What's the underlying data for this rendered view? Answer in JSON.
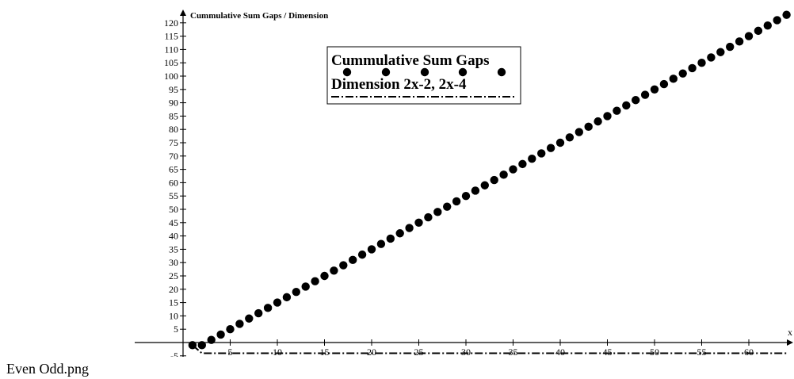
{
  "caption": "Even Odd.png",
  "chart_data": {
    "type": "scatter",
    "title": "",
    "ylabel": "Cummulative Sum Gaps / Dimension",
    "xlabel": "x",
    "xlim": [
      0,
      64
    ],
    "ylim": [
      -8,
      124
    ],
    "x_ticks": [
      5,
      10,
      15,
      20,
      25,
      30,
      35,
      40,
      45,
      50,
      55,
      60
    ],
    "y_ticks": [
      -5,
      5,
      10,
      15,
      20,
      25,
      30,
      35,
      40,
      45,
      50,
      55,
      60,
      65,
      70,
      75,
      80,
      85,
      90,
      95,
      100,
      105,
      110,
      115,
      120
    ],
    "legend_position": "top-center",
    "series": [
      {
        "name": "Cummulative Sum Gaps",
        "style": "dots",
        "color": "#000000",
        "points": [
          [
            1,
            -1
          ],
          [
            2,
            -1
          ],
          [
            3,
            1
          ],
          [
            4,
            3
          ],
          [
            5,
            5
          ],
          [
            6,
            7
          ],
          [
            7,
            9
          ],
          [
            8,
            11
          ],
          [
            9,
            13
          ],
          [
            10,
            15
          ],
          [
            11,
            17
          ],
          [
            12,
            19
          ],
          [
            13,
            21
          ],
          [
            14,
            23
          ],
          [
            15,
            25
          ],
          [
            16,
            27
          ],
          [
            17,
            29
          ],
          [
            18,
            31
          ],
          [
            19,
            33
          ],
          [
            20,
            35
          ],
          [
            21,
            37
          ],
          [
            22,
            39
          ],
          [
            23,
            41
          ],
          [
            24,
            43
          ],
          [
            25,
            45
          ],
          [
            26,
            47
          ],
          [
            27,
            49
          ],
          [
            28,
            51
          ],
          [
            29,
            53
          ],
          [
            30,
            55
          ],
          [
            31,
            57
          ],
          [
            32,
            59
          ],
          [
            33,
            61
          ],
          [
            34,
            63
          ],
          [
            35,
            65
          ],
          [
            36,
            67
          ],
          [
            37,
            69
          ],
          [
            38,
            71
          ],
          [
            39,
            73
          ],
          [
            40,
            75
          ],
          [
            41,
            77
          ],
          [
            42,
            79
          ],
          [
            43,
            81
          ],
          [
            44,
            83
          ],
          [
            45,
            85
          ],
          [
            46,
            87
          ],
          [
            47,
            89
          ],
          [
            48,
            91
          ],
          [
            49,
            93
          ],
          [
            50,
            95
          ],
          [
            51,
            97
          ],
          [
            52,
            99
          ],
          [
            53,
            101
          ],
          [
            54,
            103
          ],
          [
            55,
            105
          ],
          [
            56,
            107
          ],
          [
            57,
            109
          ],
          [
            58,
            111
          ],
          [
            59,
            113
          ],
          [
            60,
            115
          ],
          [
            61,
            117
          ],
          [
            62,
            119
          ],
          [
            63,
            121
          ],
          [
            64,
            123
          ]
        ]
      },
      {
        "name": "Dimension 2x-2, 2x-4",
        "style": "dash-dot",
        "color": "#000000",
        "points": [
          [
            1,
            -1
          ],
          [
            2,
            -4
          ],
          [
            64,
            -4
          ]
        ]
      }
    ]
  }
}
